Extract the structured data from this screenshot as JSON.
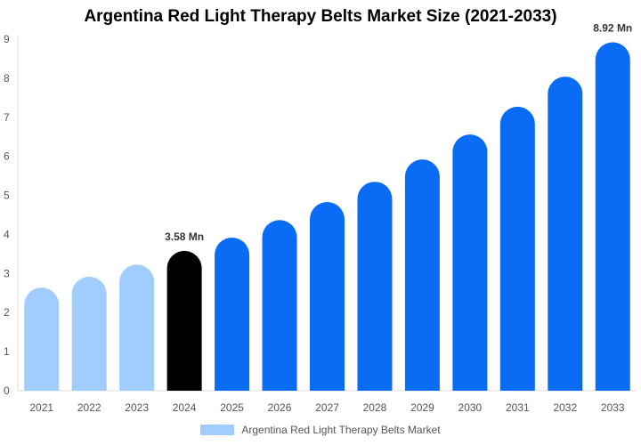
{
  "chart_data": {
    "type": "bar",
    "title": "Argentina Red Light Therapy Belts Market Size (2021-2033)",
    "categories": [
      "2021",
      "2022",
      "2023",
      "2024",
      "2025",
      "2026",
      "2027",
      "2028",
      "2029",
      "2030",
      "2031",
      "2032",
      "2033"
    ],
    "series": [
      {
        "name": "Argentina Red Light Therapy Belts Market",
        "values": [
          2.64,
          2.92,
          3.23,
          3.58,
          3.92,
          4.37,
          4.83,
          5.35,
          5.92,
          6.56,
          7.27,
          8.04,
          8.92
        ]
      }
    ],
    "data_labels": {
      "3": "3.58 Mn",
      "12": "8.92 Mn"
    },
    "ylim": [
      0,
      9
    ],
    "yticks": [
      0,
      1,
      2,
      3,
      4,
      5,
      6,
      7,
      8,
      9
    ],
    "grid": false,
    "legend": "bottom",
    "colors": {
      "historical": "#a0cdfd",
      "current": "#000000",
      "forecast": "#0a6cf5"
    }
  }
}
